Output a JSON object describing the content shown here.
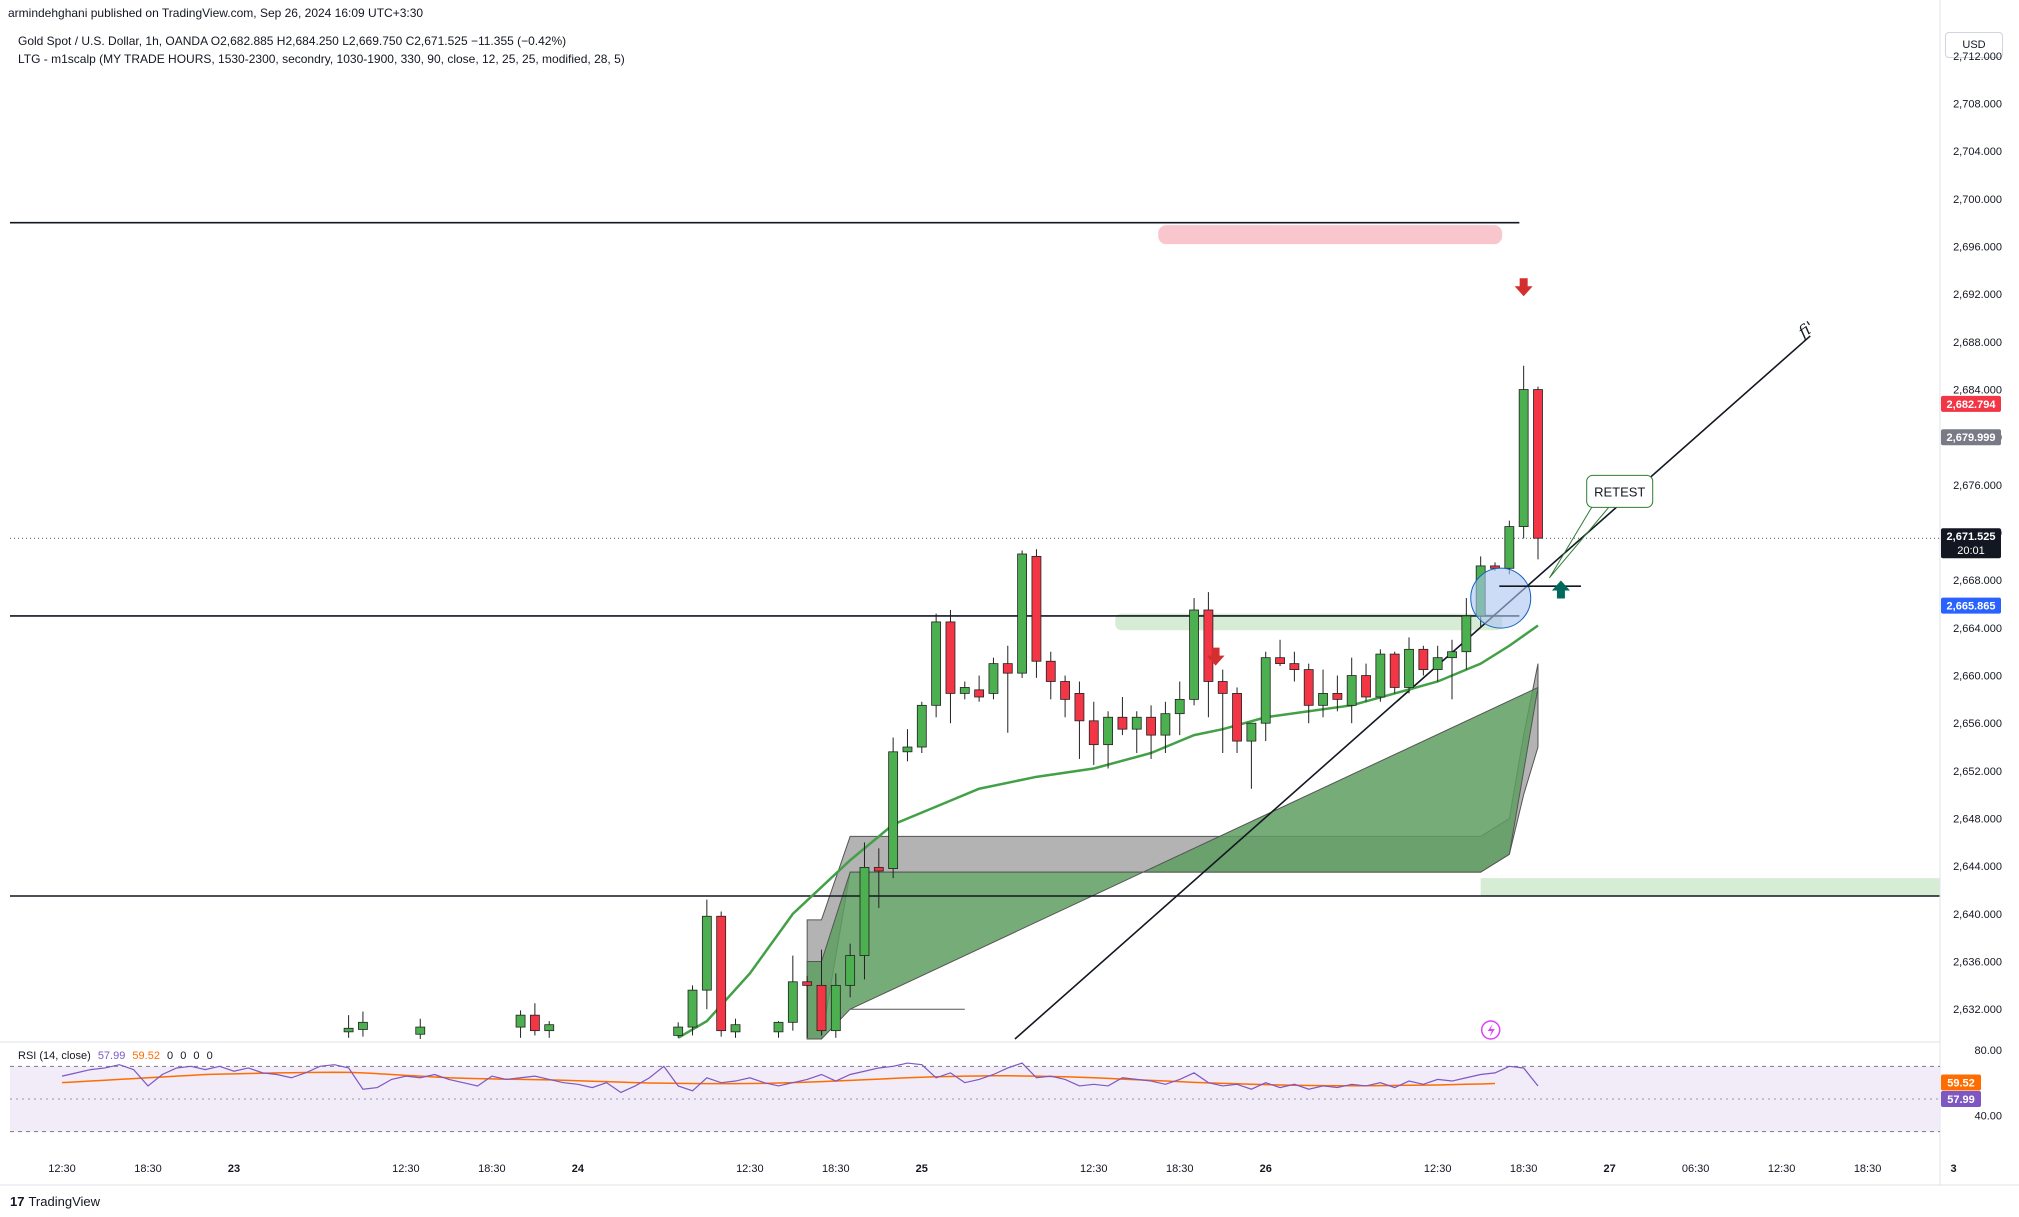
{
  "header": {
    "published_line": "armindehghani published on TradingView.com, Sep 26, 2024 16:09 UTC+3:30"
  },
  "legend": {
    "symbol_line": "Gold Spot / U.S. Dollar, 1h, OANDA  O2,682.885  H2,684.250  L2,669.750  C2,671.525  −11.355 (−0.42%)",
    "indicator_line": "LTG - m1scalp (MY TRADE HOURS, 1530-2300, secondry, 1030-1900, 330, 90, close, 12, 25, 25, modified, 28, 5)",
    "rsi_title": "RSI (14, close)",
    "rsi_values": [
      "57.99",
      "59.52",
      "0",
      "0",
      "0",
      "0"
    ]
  },
  "toolbar": {
    "currency": "USD"
  },
  "footer": {
    "brand": "TradingView",
    "brand_mark": "17"
  },
  "colors": {
    "up": "#4caf50",
    "down": "#f23645",
    "price_line": "#131722",
    "rsi_line": "#7e57c2",
    "rsi_ma": "#ff6d00",
    "ema": "#43a047",
    "cloud_gray": "#a6a6a6",
    "cloud_green": "#5e9e5f",
    "supply_zone": "#f8c6cc",
    "demand_zone": "#d7ecd5"
  },
  "annotations": {
    "retest_label": "RETEST",
    "trend_label": "fi'"
  },
  "chart_data": {
    "type": "candlestick",
    "title": "Gold Spot / U.S. Dollar, 1h, OANDA",
    "currency": "USD",
    "ylim": [
      2629.5,
      2713.5
    ],
    "y_ticks": [
      "2,712.000",
      "2,708.000",
      "2,704.000",
      "2,700.000",
      "2,696.000",
      "2,692.000",
      "2,688.000",
      "2,684.000",
      "2,680.000",
      "2,676.000",
      "2,672.000",
      "2,668.000",
      "2,664.000",
      "2,660.000",
      "2,656.000",
      "2,652.000",
      "2,648.000",
      "2,644.000",
      "2,640.000",
      "2,636.000",
      "2,632.000"
    ],
    "x_ticks": [
      {
        "label": "12:30",
        "bar": 0
      },
      {
        "label": "18:30",
        "bar": 6
      },
      {
        "label": "23",
        "bar": 12
      },
      {
        "label": "12:30",
        "bar": 24
      },
      {
        "label": "18:30",
        "bar": 30
      },
      {
        "label": "24",
        "bar": 36
      },
      {
        "label": "12:30",
        "bar": 48
      },
      {
        "label": "18:30",
        "bar": 54
      },
      {
        "label": "25",
        "bar": 60
      },
      {
        "label": "12:30",
        "bar": 72
      },
      {
        "label": "18:30",
        "bar": 78
      },
      {
        "label": "26",
        "bar": 84
      },
      {
        "label": "12:30",
        "bar": 96
      },
      {
        "label": "18:30",
        "bar": 102
      },
      {
        "label": "27",
        "bar": 108
      },
      {
        "label": "06:30",
        "bar": 114
      },
      {
        "label": "12:30",
        "bar": 120
      },
      {
        "label": "18:30",
        "bar": 126
      },
      {
        "label": "3",
        "bar": 132
      }
    ],
    "price_labels": [
      {
        "value": "2,682.794",
        "price": 2682.794,
        "color": "#f23645"
      },
      {
        "value": "2,679.999",
        "price": 2679.999,
        "color": "#787b86"
      },
      {
        "value": "2,671.525",
        "price": 2671.525,
        "color": "#131722",
        "sub": "20:01"
      },
      {
        "value": "2,665.865",
        "price": 2665.865,
        "color": "#2962ff"
      }
    ],
    "candles": [
      [
        20,
        2630.1,
        2631.5,
        2629.6,
        2630.4
      ],
      [
        21,
        2630.3,
        2631.8,
        2629.7,
        2630.9
      ],
      [
        25,
        2629.9,
        2631.2,
        2629.5,
        2630.5
      ],
      [
        32,
        2630.5,
        2631.9,
        2629.6,
        2631.5
      ],
      [
        33,
        2631.5,
        2632.5,
        2629.8,
        2630.2
      ],
      [
        34,
        2630.2,
        2631.0,
        2629.6,
        2630.7
      ],
      [
        43,
        2629.8,
        2630.9,
        2629.6,
        2630.5
      ],
      [
        44,
        2630.5,
        2634.0,
        2629.8,
        2633.6
      ],
      [
        45,
        2633.6,
        2641.2,
        2632.0,
        2639.8
      ],
      [
        46,
        2639.8,
        2640.2,
        2629.7,
        2630.2
      ],
      [
        47,
        2630.1,
        2631.2,
        2629.6,
        2630.7
      ],
      [
        50,
        2630.1,
        2631.0,
        2629.6,
        2630.9
      ],
      [
        51,
        2630.9,
        2636.5,
        2630.2,
        2634.3
      ],
      [
        52,
        2634.3,
        2634.8,
        2629.6,
        2634.0
      ],
      [
        53,
        2634.0,
        2637.0,
        2629.8,
        2630.2
      ],
      [
        54,
        2630.2,
        2635.0,
        2629.6,
        2634.0
      ],
      [
        55,
        2634.0,
        2637.5,
        2633.0,
        2636.5
      ],
      [
        56,
        2636.5,
        2646.0,
        2634.5,
        2643.9
      ],
      [
        57,
        2643.9,
        2645.5,
        2640.5,
        2643.6
      ],
      [
        58,
        2643.8,
        2654.8,
        2643.0,
        2653.6
      ],
      [
        59,
        2653.6,
        2655.5,
        2652.8,
        2654.0
      ],
      [
        60,
        2654.0,
        2657.8,
        2653.5,
        2657.5
      ],
      [
        61,
        2657.5,
        2665.2,
        2656.5,
        2664.5
      ],
      [
        62,
        2664.5,
        2665.5,
        2656.0,
        2658.5
      ],
      [
        63,
        2658.5,
        2659.5,
        2658.0,
        2659.0
      ],
      [
        64,
        2658.8,
        2660.0,
        2657.8,
        2658.2
      ],
      [
        65,
        2658.5,
        2661.5,
        2658.0,
        2661.0
      ],
      [
        66,
        2661.0,
        2662.5,
        2655.2,
        2660.2
      ],
      [
        67,
        2660.2,
        2670.5,
        2659.8,
        2670.2
      ],
      [
        68,
        2670.0,
        2670.6,
        2659.8,
        2661.2
      ],
      [
        69,
        2661.2,
        2662.0,
        2658.0,
        2659.5
      ],
      [
        70,
        2659.5,
        2660.0,
        2656.5,
        2658.0
      ],
      [
        71,
        2658.5,
        2659.5,
        2653.0,
        2656.2
      ],
      [
        72,
        2656.2,
        2657.8,
        2652.5,
        2654.2
      ],
      [
        73,
        2654.2,
        2657.0,
        2652.2,
        2656.5
      ],
      [
        74,
        2656.5,
        2658.2,
        2655.0,
        2655.5
      ],
      [
        75,
        2655.5,
        2657.0,
        2653.5,
        2656.5
      ],
      [
        76,
        2656.5,
        2657.5,
        2653.0,
        2655.0
      ],
      [
        77,
        2655.0,
        2657.8,
        2653.5,
        2656.8
      ],
      [
        78,
        2656.8,
        2659.5,
        2655.0,
        2658.0
      ],
      [
        79,
        2658.0,
        2666.5,
        2657.5,
        2665.5
      ],
      [
        80,
        2665.5,
        2667.0,
        2656.5,
        2659.5
      ],
      [
        81,
        2659.5,
        2660.5,
        2653.5,
        2658.5
      ],
      [
        82,
        2658.5,
        2659.0,
        2653.5,
        2654.5
      ],
      [
        83,
        2654.5,
        2656.0,
        2650.5,
        2656.0
      ],
      [
        84,
        2656.0,
        2662.0,
        2654.5,
        2661.5
      ],
      [
        85,
        2661.5,
        2663.0,
        2660.8,
        2661.0
      ],
      [
        86,
        2661.0,
        2662.0,
        2659.5,
        2660.5
      ],
      [
        87,
        2660.5,
        2661.0,
        2656.0,
        2657.5
      ],
      [
        88,
        2657.5,
        2660.5,
        2656.5,
        2658.5
      ],
      [
        89,
        2658.5,
        2660.0,
        2657.0,
        2658.0
      ],
      [
        90,
        2657.5,
        2661.5,
        2656.0,
        2660.0
      ],
      [
        91,
        2660.0,
        2661.0,
        2657.8,
        2658.2
      ],
      [
        92,
        2658.2,
        2662.2,
        2657.8,
        2661.8
      ],
      [
        93,
        2661.8,
        2662.0,
        2658.5,
        2659.0
      ],
      [
        94,
        2659.0,
        2663.2,
        2658.5,
        2662.2
      ],
      [
        95,
        2662.2,
        2662.5,
        2660.0,
        2660.5
      ],
      [
        96,
        2660.5,
        2662.5,
        2659.5,
        2661.5
      ],
      [
        97,
        2661.5,
        2663.0,
        2658.0,
        2662.0
      ],
      [
        98,
        2662.0,
        2666.5,
        2660.5,
        2665.0
      ],
      [
        99,
        2665.0,
        2670.0,
        2664.0,
        2669.2
      ],
      [
        100,
        2669.2,
        2669.5,
        2668.8,
        2669.0
      ],
      [
        101,
        2669.0,
        2673.0,
        2668.5,
        2672.5
      ],
      [
        102,
        2672.5,
        2686.0,
        2671.5,
        2684.0
      ],
      [
        103,
        2684.0,
        2684.25,
        2669.75,
        2671.525
      ]
    ],
    "ema": [
      [
        43,
        2629.6
      ],
      [
        45,
        2631.0
      ],
      [
        48,
        2635.0
      ],
      [
        51,
        2640.0
      ],
      [
        55,
        2644.5
      ],
      [
        58,
        2647.5
      ],
      [
        61,
        2649.0
      ],
      [
        64,
        2650.5
      ],
      [
        68,
        2651.5
      ],
      [
        72,
        2652.2
      ],
      [
        76,
        2653.5
      ],
      [
        79,
        2655.0
      ],
      [
        81,
        2655.5
      ],
      [
        84,
        2656.5
      ],
      [
        87,
        2657.0
      ],
      [
        90,
        2657.5
      ],
      [
        93,
        2658.5
      ],
      [
        96,
        2659.5
      ],
      [
        99,
        2661.0
      ],
      [
        101,
        2662.5
      ],
      [
        103,
        2664.2
      ]
    ],
    "cloud_gray": {
      "upper": [
        [
          52,
          2639.5
        ],
        [
          53,
          2639.5
        ],
        [
          55,
          2646.5
        ],
        [
          77,
          2646.5
        ],
        [
          78,
          2646.5
        ],
        [
          99,
          2646.5
        ],
        [
          101,
          2648.0
        ],
        [
          102,
          2655.0
        ],
        [
          103,
          2661.0
        ],
        [
          103,
          2661.0
        ]
      ],
      "lower": [
        [
          52,
          2629.5
        ],
        [
          53,
          2629.5
        ],
        [
          55,
          2643.5
        ],
        [
          99,
          2643.5
        ],
        [
          101,
          2645.0
        ],
        [
          102,
          2650.0
        ],
        [
          103,
          2654.0
        ],
        [
          103,
          2654.0
        ]
      ]
    },
    "cloud_green": {
      "upper": [
        [
          52,
          2636.0
        ],
        [
          53,
          2636.0
        ],
        [
          55,
          2643.5
        ],
        [
          99,
          2643.5
        ],
        [
          101,
          2645.0
        ],
        [
          102,
          2652.0
        ],
        [
          103,
          2659.0
        ]
      ],
      "lower": [
        [
          52,
          2629.5
        ],
        [
          53,
          2629.5
        ],
        [
          55,
          2632.0
        ],
        [
          60,
          2632.0
        ],
        [
          63,
          2632.0
        ],
        [
          55,
          2632.0
        ]
      ]
    },
    "horizontal_lines": [
      2698.0,
      2665.0,
      2641.5
    ],
    "supply_zone": {
      "from": [
        2696.2,
        2697.8
      ],
      "x": [
        76.5,
        100.5
      ]
    },
    "demand_zone_1": {
      "from": [
        2663.8,
        2665.2
      ],
      "x": [
        73.5,
        100.5
      ]
    },
    "demand_zone_2": {
      "from": [
        2641.5,
        2643.0
      ],
      "x": [
        99.0,
        134.0
      ]
    },
    "trendline": [
      [
        66.5,
        2629.5
      ],
      [
        122.0,
        2688.5
      ]
    ],
    "markers": [
      {
        "type": "arrow-down",
        "bar": 80.5,
        "price": 2661.5,
        "color": "#d32f2f"
      },
      {
        "type": "arrow-down",
        "bar": 102.0,
        "price": 2692.5,
        "color": "#d32f2f"
      },
      {
        "type": "arrow-up",
        "bar": 104.6,
        "price": 2667.3,
        "color": "#00695c"
      }
    ],
    "rsi": {
      "ylim": [
        20,
        80
      ],
      "y_ticks": [
        "80.00",
        "40.00"
      ],
      "levels": [
        70,
        30
      ],
      "values": [
        64,
        66,
        68,
        69,
        71,
        68,
        58,
        65,
        69,
        70,
        68,
        70,
        67,
        69,
        66,
        65,
        63,
        66,
        70,
        71,
        69,
        56,
        57,
        62,
        64,
        63,
        65,
        62,
        60,
        58,
        64,
        62,
        63,
        64,
        62,
        60,
        59,
        57,
        60,
        54,
        58,
        63,
        70,
        58,
        55,
        63,
        60,
        61,
        63,
        60,
        58,
        60,
        62,
        65,
        61,
        65,
        67,
        69,
        70,
        72,
        71,
        63,
        66,
        60,
        62,
        65,
        69,
        72,
        63,
        64,
        62,
        58,
        59,
        58,
        63,
        62,
        61,
        59,
        62,
        66,
        60,
        58,
        59,
        56,
        60,
        57,
        59,
        56,
        58,
        57,
        59,
        58,
        60,
        57,
        61,
        59,
        62,
        61,
        63,
        65,
        66,
        70,
        69,
        57.99
      ],
      "ma": [
        60,
        60.5,
        61,
        61.5,
        62,
        62.5,
        63,
        63.5,
        64,
        64.5,
        65,
        65.2,
        65.4,
        65.6,
        65.8,
        66,
        66.1,
        66.2,
        66.3,
        66.4,
        66.3,
        66,
        65.5,
        65,
        64.5,
        64,
        63.5,
        63,
        62.7,
        62.5,
        62.3,
        62.1,
        62,
        61.9,
        61.7,
        61.5,
        61.2,
        60.9,
        60.6,
        60.3,
        60,
        59.8,
        59.7,
        59.6,
        59.5,
        59.4,
        59.4,
        59.4,
        59.5,
        59.6,
        59.8,
        60,
        60.3,
        60.6,
        61,
        61.4,
        61.8,
        62.2,
        62.6,
        63,
        63.3,
        63.6,
        63.8,
        64,
        64.1,
        64.2,
        64.2,
        64.1,
        64,
        63.8,
        63.6,
        63.3,
        63,
        62.6,
        62.2,
        61.8,
        61.4,
        61,
        60.6,
        60.2,
        59.9,
        59.6,
        59.3,
        59,
        58.8,
        58.6,
        58.4,
        58.3,
        58.2,
        58.1,
        58.1,
        58.1,
        58.2,
        58.3,
        58.4,
        58.5,
        58.6,
        58.8,
        59,
        59.2,
        59.52
      ]
    }
  }
}
